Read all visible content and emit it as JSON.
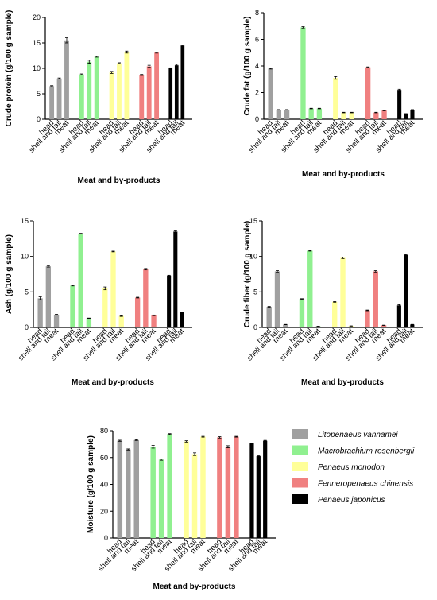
{
  "species": [
    {
      "name": "Litopenaeus vannamei",
      "color": "#a0a0a0"
    },
    {
      "name": "Macrobrachium rosenbergii",
      "color": "#90f090"
    },
    {
      "name": "Penaeus monodon",
      "color": "#ffff99"
    },
    {
      "name": "Fenneropenaeus chinensis",
      "color": "#f08080"
    },
    {
      "name": "Penaeus japonicus",
      "color": "#000000"
    }
  ],
  "chart_data": [
    {
      "type": "bar",
      "xlabel": "Meat and by-products",
      "ylabel": "Crude protein (g/100 g sample)",
      "ylim": [
        0,
        20
      ],
      "yticks": [
        "0",
        "5",
        "10",
        "15",
        "20"
      ],
      "categories": [
        "head",
        "shell and tail",
        "meat"
      ],
      "series": [
        {
          "name": "Litopenaeus vannamei",
          "values": [
            6.5,
            8.0,
            15.5
          ],
          "errors": [
            0.1,
            0.1,
            0.5
          ]
        },
        {
          "name": "Macrobrachium rosenbergii",
          "values": [
            8.8,
            11.3,
            12.3
          ],
          "errors": [
            0.1,
            0.3,
            0.1
          ]
        },
        {
          "name": "Penaeus monodon",
          "values": [
            9.2,
            11.0,
            13.2
          ],
          "errors": [
            0.2,
            0.1,
            0.2
          ]
        },
        {
          "name": "Fenneropenaeus chinensis",
          "values": [
            8.7,
            10.4,
            13.1
          ],
          "errors": [
            0.1,
            0.2,
            0.1
          ]
        },
        {
          "name": "Penaeus japonicus",
          "values": [
            10.0,
            10.6,
            14.5
          ],
          "errors": [
            0.1,
            0.2,
            0.1
          ]
        }
      ]
    },
    {
      "type": "bar",
      "xlabel": "Meat and by-products",
      "ylabel": "Crude fat (g/100 g sample)",
      "ylim": [
        0,
        8
      ],
      "yticks": [
        "0",
        "2",
        "4",
        "6",
        "8"
      ],
      "categories": [
        "head",
        "shell and tail",
        "meat"
      ],
      "series": [
        {
          "name": "Litopenaeus vannamei",
          "values": [
            3.8,
            0.7,
            0.7
          ],
          "errors": [
            0.03,
            0.02,
            0.02
          ]
        },
        {
          "name": "Macrobrachium rosenbergii",
          "values": [
            6.9,
            0.8,
            0.8
          ],
          "errors": [
            0.05,
            0.02,
            0.02
          ]
        },
        {
          "name": "Penaeus monodon",
          "values": [
            3.1,
            0.5,
            0.5
          ],
          "errors": [
            0.1,
            0.02,
            0.02
          ]
        },
        {
          "name": "Fenneropenaeus chinensis",
          "values": [
            3.9,
            0.5,
            0.65
          ],
          "errors": [
            0.03,
            0.02,
            0.02
          ]
        },
        {
          "name": "Penaeus japonicus",
          "values": [
            2.2,
            0.4,
            0.7
          ],
          "errors": [
            0.05,
            0.02,
            0.02
          ]
        }
      ]
    },
    {
      "type": "bar",
      "xlabel": "Meat and by-products",
      "ylabel": "Ash (g/100 g sample)",
      "ylim": [
        0,
        15
      ],
      "yticks": [
        "0",
        "5",
        "10",
        "15"
      ],
      "categories": [
        "head",
        "shell and tail",
        "meat"
      ],
      "series": [
        {
          "name": "Litopenaeus vannamei",
          "values": [
            4.1,
            8.6,
            1.8
          ],
          "errors": [
            0.2,
            0.1,
            0.05
          ]
        },
        {
          "name": "Macrobrachium rosenbergii",
          "values": [
            5.9,
            13.2,
            1.3
          ],
          "errors": [
            0.05,
            0.05,
            0.02
          ]
        },
        {
          "name": "Penaeus monodon",
          "values": [
            5.5,
            10.7,
            1.6
          ],
          "errors": [
            0.2,
            0.05,
            0.05
          ]
        },
        {
          "name": "Fenneropenaeus chinensis",
          "values": [
            4.2,
            8.2,
            1.7
          ],
          "errors": [
            0.05,
            0.1,
            0.05
          ]
        },
        {
          "name": "Penaeus japonicus",
          "values": [
            7.3,
            13.5,
            2.1
          ],
          "errors": [
            0.05,
            0.1,
            0.02
          ]
        }
      ]
    },
    {
      "type": "bar",
      "xlabel": "Meat and by-products",
      "ylabel": "Crude fiber (g/100 g sample)",
      "ylim": [
        0,
        15
      ],
      "yticks": [
        "0",
        "5",
        "10",
        "15"
      ],
      "categories": [
        "head",
        "shell and tail",
        "meat"
      ],
      "series": [
        {
          "name": "Litopenaeus vannamei",
          "values": [
            2.9,
            7.9,
            0.4
          ],
          "errors": [
            0.05,
            0.1,
            0.02
          ]
        },
        {
          "name": "Macrobrachium rosenbergii",
          "values": [
            4.0,
            10.8,
            0.15
          ],
          "errors": [
            0.05,
            0.05,
            0.02
          ]
        },
        {
          "name": "Penaeus monodon",
          "values": [
            3.6,
            9.8,
            0.2
          ],
          "errors": [
            0.05,
            0.1,
            0.02
          ]
        },
        {
          "name": "Fenneropenaeus chinensis",
          "values": [
            2.4,
            7.9,
            0.3
          ],
          "errors": [
            0.05,
            0.1,
            0.02
          ]
        },
        {
          "name": "Penaeus japonicus",
          "values": [
            3.1,
            10.2,
            0.4
          ],
          "errors": [
            0.1,
            0.05,
            0.02
          ]
        }
      ]
    },
    {
      "type": "bar",
      "xlabel": "Meat and by-products",
      "ylabel": "Moisture (g/100 g sample)",
      "ylim": [
        0,
        80
      ],
      "yticks": [
        "0",
        "20",
        "40",
        "60",
        "80"
      ],
      "categories": [
        "head",
        "shell and tail",
        "meat"
      ],
      "series": [
        {
          "name": "Litopenaeus vannamei",
          "values": [
            72.5,
            66.0,
            73.0
          ],
          "errors": [
            0.4,
            0.4,
            0.3
          ]
        },
        {
          "name": "Macrobrachium rosenbergii",
          "values": [
            68.0,
            58.5,
            77.5
          ],
          "errors": [
            1.0,
            0.5,
            0.3
          ]
        },
        {
          "name": "Penaeus monodon",
          "values": [
            72.0,
            62.5,
            75.5
          ],
          "errors": [
            0.5,
            1.0,
            0.3
          ]
        },
        {
          "name": "Fenneropenaeus chinensis",
          "values": [
            75.0,
            68.0,
            75.5
          ],
          "errors": [
            0.5,
            0.8,
            0.3
          ]
        },
        {
          "name": "Penaeus japonicus",
          "values": [
            70.5,
            61.0,
            72.5
          ],
          "errors": [
            0.3,
            0.3,
            0.3
          ]
        }
      ]
    }
  ]
}
